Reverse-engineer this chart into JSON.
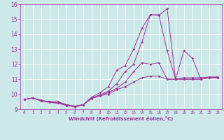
{
  "xlabel": "Windchill (Refroidissement éolien,°C)",
  "xlim": [
    -0.5,
    23.5
  ],
  "ylim": [
    9,
    16
  ],
  "xticks": [
    0,
    1,
    2,
    3,
    4,
    5,
    6,
    7,
    8,
    9,
    10,
    11,
    12,
    13,
    14,
    15,
    16,
    17,
    18,
    19,
    20,
    21,
    22,
    23
  ],
  "yticks": [
    9,
    10,
    11,
    12,
    13,
    14,
    15,
    16
  ],
  "bg_color": "#cce8e8",
  "line_color": "#993399",
  "grid_color": "#ffffff",
  "lines": [
    [
      9.65,
      9.75,
      9.6,
      9.5,
      9.5,
      9.3,
      9.2,
      9.3,
      9.8,
      10.1,
      10.5,
      11.6,
      11.9,
      13.0,
      14.4,
      15.3,
      15.25,
      15.7,
      11.0,
      11.1,
      11.1,
      11.1,
      11.15,
      11.15
    ],
    [
      9.65,
      9.75,
      9.55,
      9.5,
      9.45,
      9.3,
      9.2,
      9.3,
      9.75,
      9.95,
      10.2,
      10.7,
      11.5,
      12.0,
      13.5,
      15.3,
      15.3,
      12.9,
      11.0,
      12.9,
      12.4,
      11.0,
      11.1,
      11.1
    ],
    [
      9.65,
      9.75,
      9.55,
      9.5,
      9.4,
      9.3,
      9.2,
      9.3,
      9.75,
      9.95,
      10.1,
      10.4,
      10.8,
      11.5,
      12.1,
      12.0,
      12.1,
      11.0,
      11.0,
      11.0,
      11.0,
      11.0,
      11.1,
      11.1
    ],
    [
      9.65,
      9.75,
      9.55,
      9.45,
      9.4,
      9.25,
      9.15,
      9.3,
      9.7,
      9.9,
      10.0,
      10.3,
      10.5,
      10.8,
      11.1,
      11.2,
      11.2,
      11.0,
      11.0,
      11.0,
      11.0,
      11.0,
      11.1,
      11.1
    ]
  ]
}
